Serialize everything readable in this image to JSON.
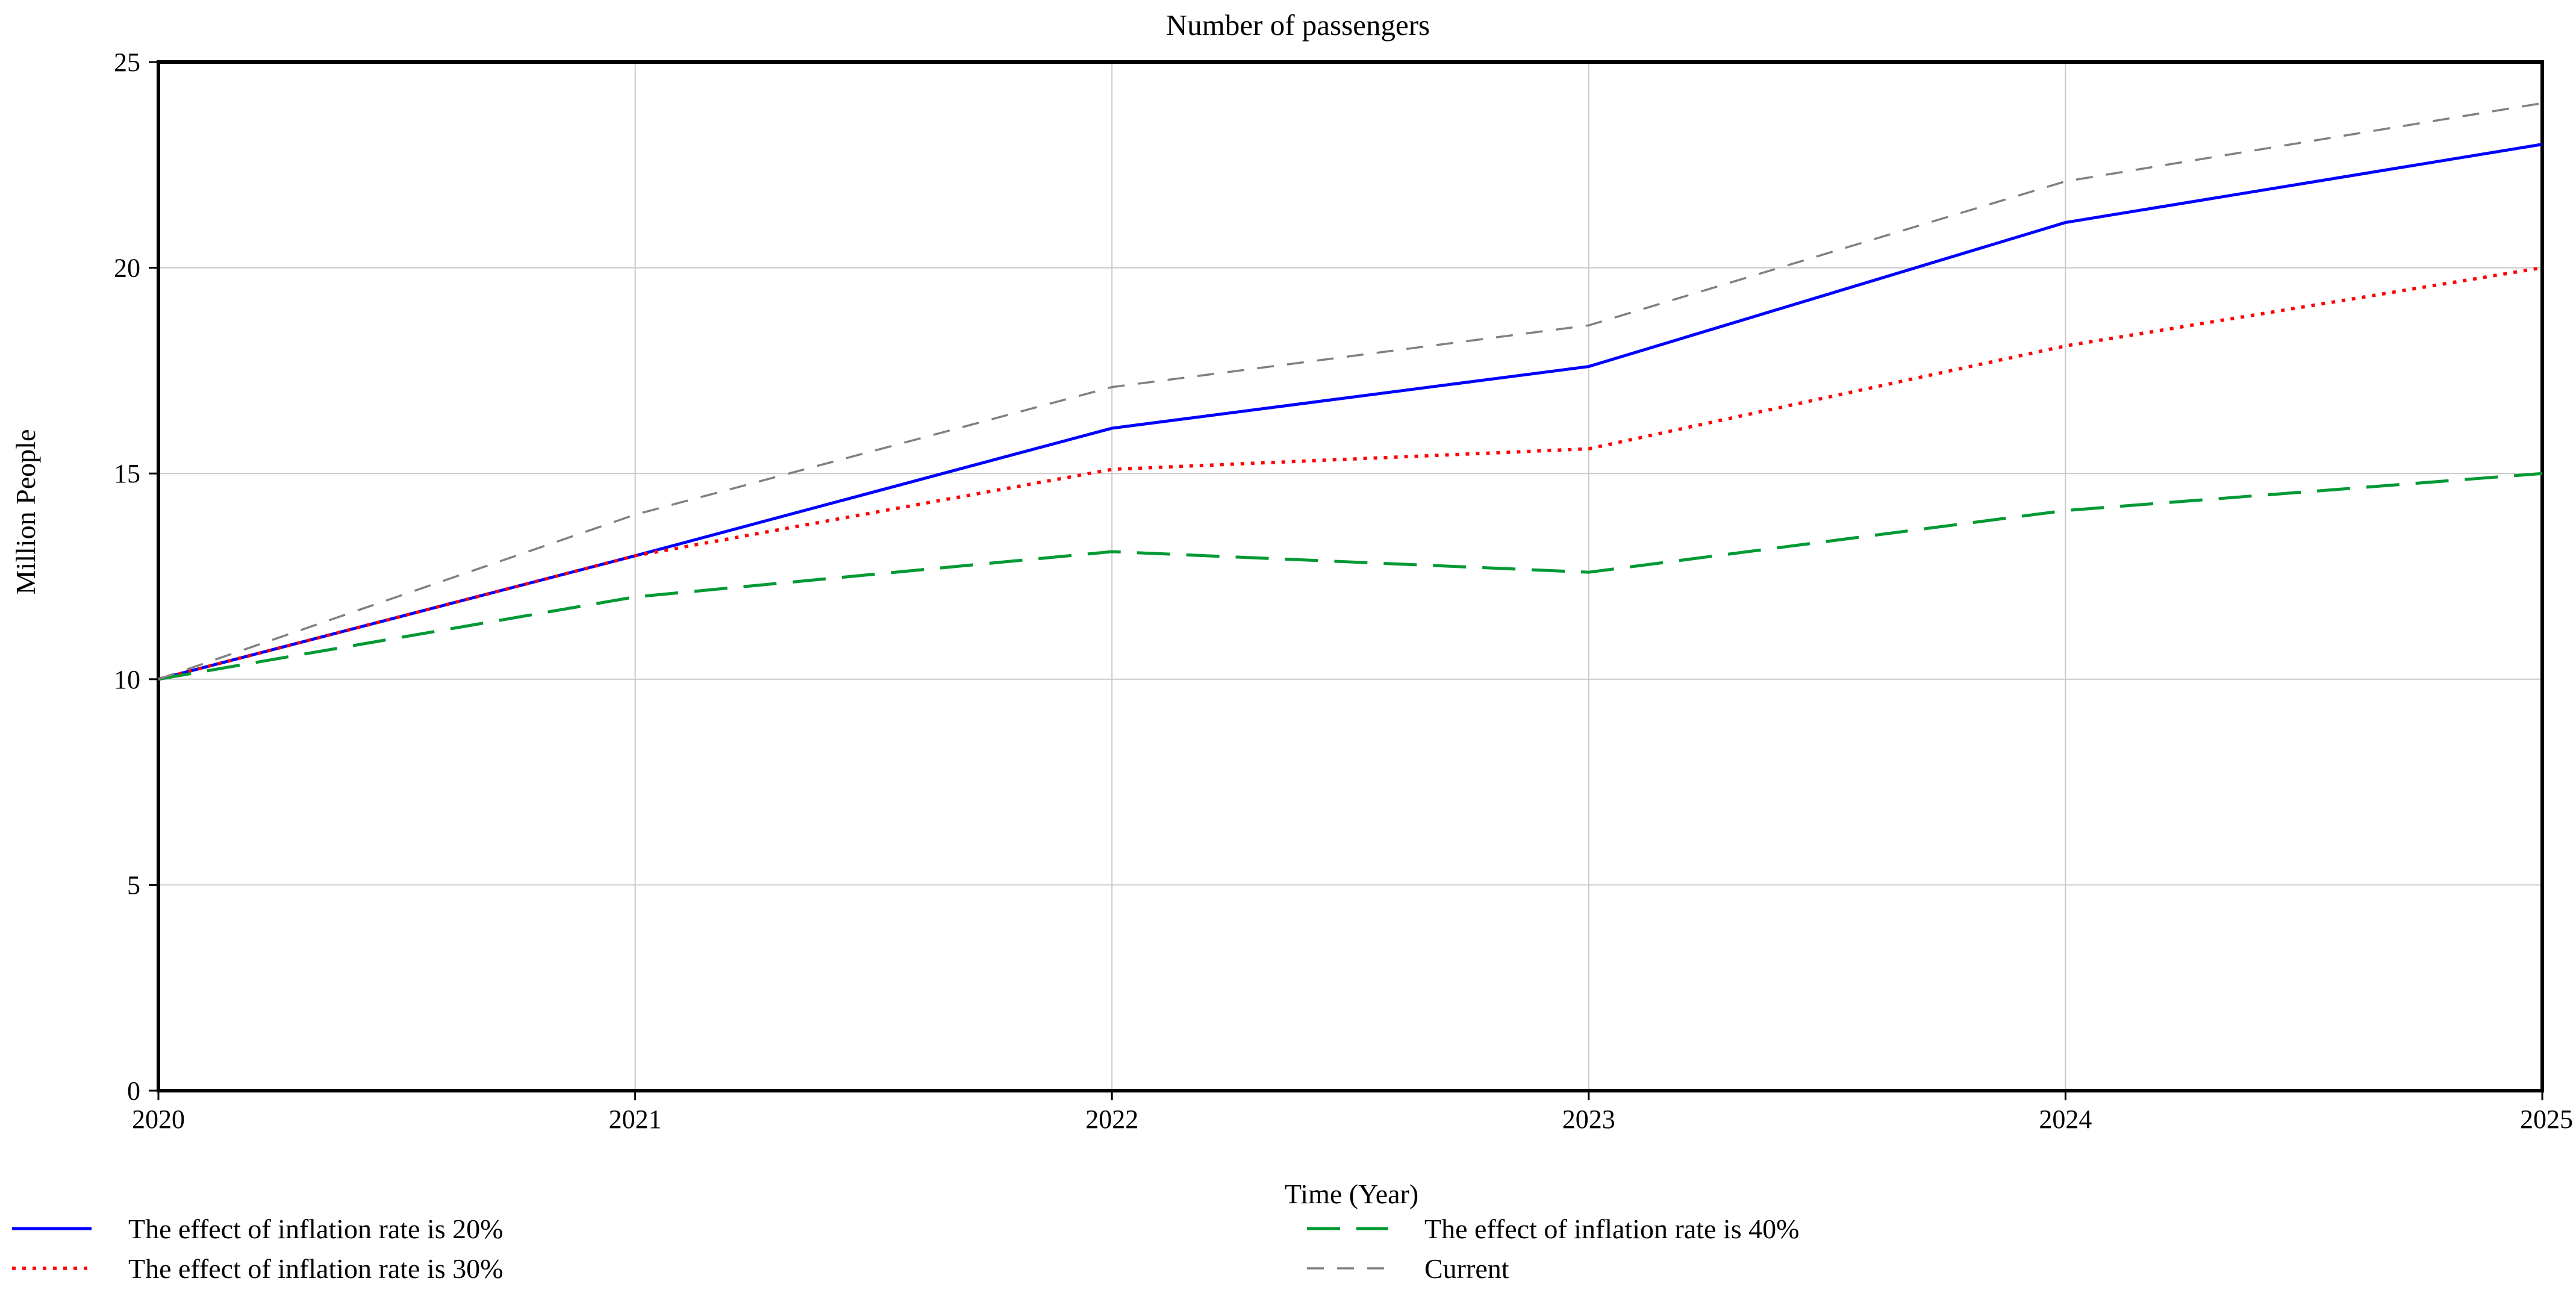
{
  "title": "Number of passengers",
  "chart_data": {
    "type": "line",
    "title": "Number of passengers",
    "xlabel": "Time (Year)",
    "ylabel": "Million People",
    "xlim": [
      2020,
      2025
    ],
    "ylim": [
      0,
      25
    ],
    "grid": true,
    "legend_position": "bottom",
    "x": [
      2020,
      2021,
      2022,
      2023,
      2024,
      2025
    ],
    "x_tick_labels": [
      "2020",
      "2021",
      "2022",
      "2023",
      "2024",
      "2025"
    ],
    "y_ticks": [
      0,
      5,
      10,
      15,
      20,
      25
    ],
    "y_tick_labels": [
      "0",
      "5",
      "10",
      "15",
      "20",
      "25"
    ],
    "gridline_y_values": [
      5,
      10,
      15,
      20
    ],
    "gridline_x_values": [
      2021,
      2022,
      2023,
      2024
    ],
    "series": [
      {
        "name": "The effect of inflation rate is 20%",
        "color": "#0000ff",
        "style": "solid",
        "values": [
          10,
          13,
          16.1,
          17.6,
          21.1,
          23
        ]
      },
      {
        "name": "The effect of inflation rate is 30%",
        "color": "#ff0000",
        "style": "dotted",
        "values": [
          10,
          13,
          15.1,
          15.6,
          18.1,
          20
        ]
      },
      {
        "name": "The effect of inflation rate is 40%",
        "color": "#009933",
        "style": "long-dash",
        "values": [
          10,
          12,
          13.1,
          12.6,
          14.1,
          15
        ]
      },
      {
        "name": "Current",
        "color": "#808080",
        "style": "dash",
        "values": [
          10,
          14,
          17.1,
          18.6,
          22.1,
          24
        ]
      }
    ],
    "legend_columns": [
      {
        "items": [
          0,
          1
        ]
      },
      {
        "items": [
          2,
          3
        ]
      }
    ]
  },
  "colors": {
    "axis": "#000000",
    "gridline": "#c9c9c9",
    "background": "#ffffff"
  }
}
